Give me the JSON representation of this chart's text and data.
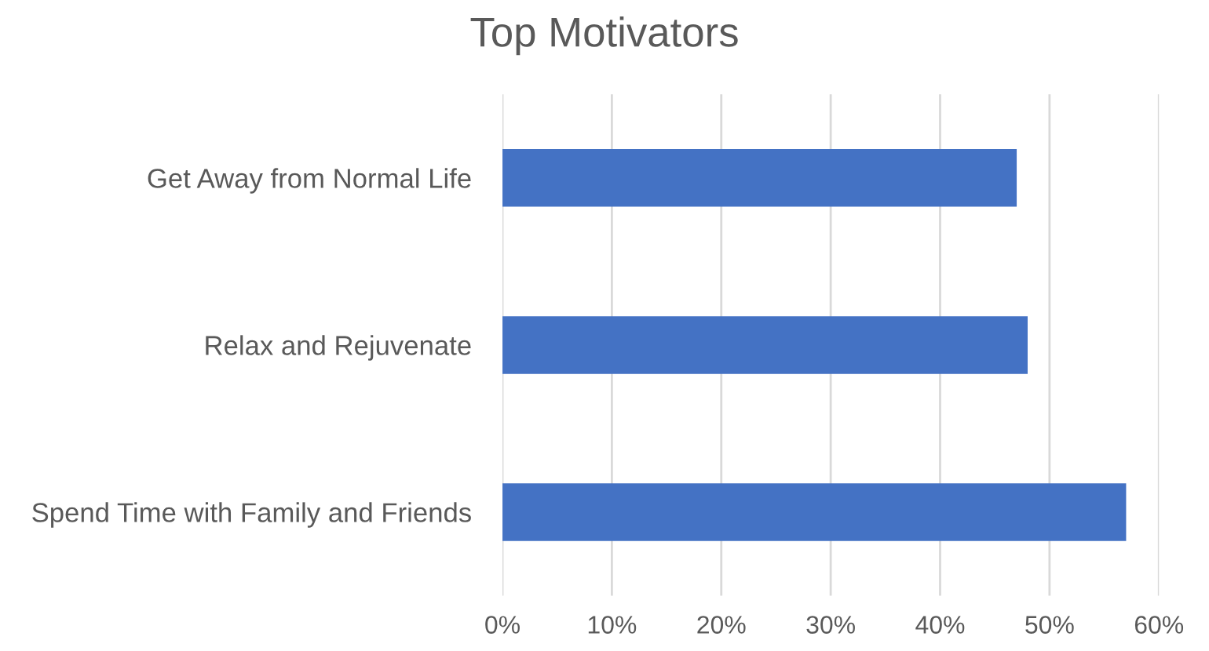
{
  "chart_data": {
    "type": "bar",
    "orientation": "horizontal",
    "title": "Top Motivators",
    "categories": [
      "Get Away from Normal Life",
      "Relax and Rejuvenate",
      "Spend Time with Family and Friends"
    ],
    "values": [
      47,
      48,
      57
    ],
    "color": "#4472c4",
    "xlim": [
      0,
      60
    ],
    "xticks": [
      {
        "value": 0,
        "label": "0%"
      },
      {
        "value": 10,
        "label": "10%"
      },
      {
        "value": 20,
        "label": "20%"
      },
      {
        "value": 30,
        "label": "30%"
      },
      {
        "value": 40,
        "label": "40%"
      },
      {
        "value": 50,
        "label": "50%"
      },
      {
        "value": 60,
        "label": "60%"
      }
    ],
    "grid": "x"
  }
}
